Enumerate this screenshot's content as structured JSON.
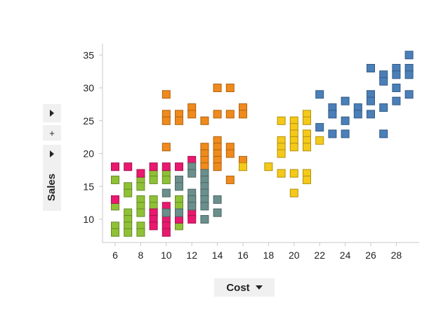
{
  "chart_data": {
    "type": "scatter",
    "xlabel": "Cost",
    "ylabel": "Sales",
    "xlim": [
      5,
      30
    ],
    "ylim": [
      7,
      36
    ],
    "x_ticks": [
      6,
      8,
      10,
      12,
      14,
      16,
      18,
      20,
      22,
      24,
      26,
      28
    ],
    "y_ticks": [
      10,
      15,
      20,
      25,
      30,
      35
    ],
    "grid": false,
    "legend": "none",
    "marker": "square",
    "series": [
      {
        "color": "#f08a1c",
        "points": [
          [
            10,
            29
          ],
          [
            10,
            26
          ],
          [
            10,
            25
          ],
          [
            10,
            21
          ],
          [
            11,
            26
          ],
          [
            11,
            25
          ],
          [
            12,
            27
          ],
          [
            12,
            26
          ],
          [
            13,
            25
          ],
          [
            13,
            21
          ],
          [
            13,
            20
          ],
          [
            13,
            19
          ],
          [
            13,
            18
          ],
          [
            14,
            30
          ],
          [
            14,
            26
          ],
          [
            14,
            22
          ],
          [
            14,
            21
          ],
          [
            14,
            20
          ],
          [
            14,
            19
          ],
          [
            14,
            18
          ],
          [
            15,
            30
          ],
          [
            15,
            26
          ],
          [
            15,
            21
          ],
          [
            15,
            20
          ],
          [
            15,
            16
          ],
          [
            16,
            27
          ],
          [
            16,
            26
          ],
          [
            16,
            19
          ]
        ]
      },
      {
        "color": "#f5c918",
        "points": [
          [
            16,
            18
          ],
          [
            18,
            18
          ],
          [
            19,
            25
          ],
          [
            19,
            22
          ],
          [
            19,
            21
          ],
          [
            19,
            20
          ],
          [
            19,
            17
          ],
          [
            20,
            25
          ],
          [
            20,
            24
          ],
          [
            20,
            23
          ],
          [
            20,
            22
          ],
          [
            20,
            21
          ],
          [
            20,
            17
          ],
          [
            20,
            14
          ],
          [
            21,
            26
          ],
          [
            21,
            25
          ],
          [
            21,
            23
          ],
          [
            21,
            22
          ],
          [
            21,
            21
          ],
          [
            21,
            17
          ],
          [
            21,
            16
          ],
          [
            22,
            22
          ]
        ]
      },
      {
        "color": "#4a7fb8",
        "points": [
          [
            22,
            29
          ],
          [
            22,
            24
          ],
          [
            23,
            27
          ],
          [
            23,
            26
          ],
          [
            23,
            23
          ],
          [
            24,
            28
          ],
          [
            24,
            25
          ],
          [
            24,
            23
          ],
          [
            25,
            27
          ],
          [
            25,
            26
          ],
          [
            26,
            33
          ],
          [
            26,
            29
          ],
          [
            26,
            28
          ],
          [
            26,
            26
          ],
          [
            27,
            32
          ],
          [
            27,
            31
          ],
          [
            27,
            27
          ],
          [
            27,
            23
          ],
          [
            28,
            33
          ],
          [
            28,
            32
          ],
          [
            28,
            30
          ],
          [
            28,
            28
          ],
          [
            29,
            35
          ],
          [
            29,
            33
          ],
          [
            29,
            32
          ],
          [
            29,
            29
          ]
        ]
      },
      {
        "color": "#8fc136",
        "points": [
          [
            6,
            16
          ],
          [
            6,
            12
          ],
          [
            6,
            9
          ],
          [
            6,
            8
          ],
          [
            7,
            15
          ],
          [
            7,
            14
          ],
          [
            7,
            11
          ],
          [
            7,
            10
          ],
          [
            7,
            9
          ],
          [
            7,
            8
          ],
          [
            8,
            16
          ],
          [
            8,
            15
          ],
          [
            8,
            13
          ],
          [
            8,
            12
          ],
          [
            8,
            11
          ],
          [
            8,
            9
          ],
          [
            8,
            8
          ],
          [
            9,
            17
          ],
          [
            9,
            16
          ],
          [
            9,
            13
          ],
          [
            9,
            12
          ],
          [
            9,
            11
          ],
          [
            10,
            17
          ],
          [
            10,
            16
          ],
          [
            11,
            13
          ],
          [
            11,
            12
          ],
          [
            11,
            9
          ],
          [
            12,
            13
          ]
        ]
      },
      {
        "color": "#e8196e",
        "points": [
          [
            6,
            18
          ],
          [
            6,
            13
          ],
          [
            7,
            18
          ],
          [
            8,
            17
          ],
          [
            9,
            18
          ],
          [
            9,
            11
          ],
          [
            9,
            10
          ],
          [
            9,
            9
          ],
          [
            10,
            18
          ],
          [
            10,
            12
          ],
          [
            10,
            11
          ],
          [
            10,
            10
          ],
          [
            10,
            9
          ],
          [
            10,
            8
          ],
          [
            11,
            18
          ],
          [
            11,
            10
          ],
          [
            12,
            19
          ],
          [
            12,
            12
          ],
          [
            12,
            11
          ],
          [
            12,
            10
          ]
        ]
      },
      {
        "color": "#6b8f8c",
        "points": [
          [
            10,
            14
          ],
          [
            10,
            11
          ],
          [
            11,
            16
          ],
          [
            11,
            15
          ],
          [
            11,
            11
          ],
          [
            12,
            18
          ],
          [
            12,
            17
          ],
          [
            12,
            14
          ],
          [
            12,
            13
          ],
          [
            12,
            12
          ],
          [
            13,
            17
          ],
          [
            13,
            16
          ],
          [
            13,
            15
          ],
          [
            13,
            14
          ],
          [
            13,
            13
          ],
          [
            13,
            12
          ],
          [
            13,
            10
          ],
          [
            14,
            13
          ],
          [
            14,
            11
          ]
        ]
      }
    ]
  }
}
